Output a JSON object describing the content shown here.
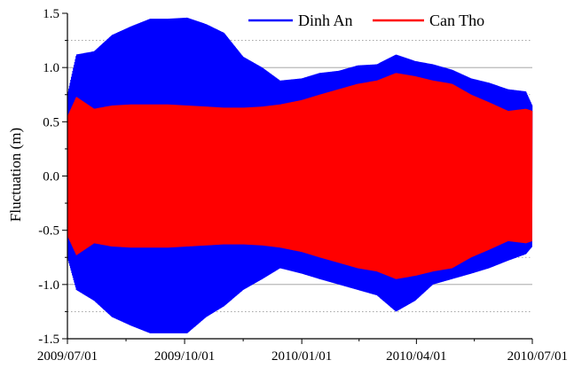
{
  "chart_data": {
    "type": "line",
    "title": "",
    "xlabel": "",
    "ylabel": "Fluctuation (m)",
    "ylim": [
      -1.5,
      1.5
    ],
    "xlim": [
      "2009/07/01",
      "2010/07/01"
    ],
    "x_ticks": [
      "2009/07/01",
      "2009/10/01",
      "2010/01/01",
      "2010/04/01",
      "2010/07/01"
    ],
    "y_ticks": [
      "-1.5",
      "-1.0",
      "-0.5",
      "0.0",
      "0.5",
      "1.0",
      "1.5"
    ],
    "grid": {
      "y_major": true,
      "y_minor_dotted": true,
      "x": false
    },
    "legend": {
      "placement": "top-right",
      "orientation": "horizontal"
    },
    "series": [
      {
        "name": "Dinh An",
        "color": "#0000ff",
        "envelope_dates": [
          "2009/07/01",
          "2009/07/08",
          "2009/07/22",
          "2009/08/05",
          "2009/08/20",
          "2009/09/04",
          "2009/09/18",
          "2009/10/03",
          "2009/10/18",
          "2009/11/01",
          "2009/11/16",
          "2009/12/01",
          "2009/12/15",
          "2010/01/01",
          "2010/01/15",
          "2010/01/30",
          "2010/02/14",
          "2010/03/01",
          "2010/03/16",
          "2010/03/31",
          "2010/04/14",
          "2010/04/29",
          "2010/05/14",
          "2010/05/28",
          "2010/06/12",
          "2010/06/26",
          "2010/07/01"
        ],
        "upper": [
          0.75,
          1.12,
          1.15,
          1.3,
          1.38,
          1.45,
          1.45,
          1.46,
          1.4,
          1.32,
          1.1,
          1.0,
          0.88,
          0.9,
          0.95,
          0.97,
          1.02,
          1.03,
          1.12,
          1.06,
          1.03,
          0.98,
          0.9,
          0.86,
          0.8,
          0.78,
          0.65
        ],
        "lower": [
          -0.75,
          -1.05,
          -1.15,
          -1.3,
          -1.38,
          -1.45,
          -1.45,
          -1.45,
          -1.3,
          -1.2,
          -1.05,
          -0.95,
          -0.85,
          -0.9,
          -0.95,
          -1.0,
          -1.05,
          -1.1,
          -1.25,
          -1.15,
          -1.0,
          -0.95,
          -0.9,
          -0.85,
          -0.78,
          -0.72,
          -0.65
        ]
      },
      {
        "name": "Can Tho",
        "color": "#ff0000",
        "envelope_dates": [
          "2009/07/01",
          "2009/07/08",
          "2009/07/22",
          "2009/08/05",
          "2009/08/20",
          "2009/09/04",
          "2009/09/18",
          "2009/10/03",
          "2009/10/18",
          "2009/11/01",
          "2009/11/16",
          "2009/12/01",
          "2009/12/15",
          "2010/01/01",
          "2010/01/15",
          "2010/01/30",
          "2010/02/14",
          "2010/03/01",
          "2010/03/16",
          "2010/03/31",
          "2010/04/14",
          "2010/04/29",
          "2010/05/14",
          "2010/05/28",
          "2010/06/12",
          "2010/06/26",
          "2010/07/01"
        ],
        "upper": [
          0.55,
          0.73,
          0.62,
          0.65,
          0.66,
          0.66,
          0.66,
          0.65,
          0.64,
          0.63,
          0.63,
          0.64,
          0.66,
          0.7,
          0.75,
          0.8,
          0.85,
          0.88,
          0.95,
          0.92,
          0.88,
          0.85,
          0.75,
          0.68,
          0.6,
          0.62,
          0.6
        ],
        "lower": [
          -0.55,
          -0.73,
          -0.62,
          -0.65,
          -0.66,
          -0.66,
          -0.66,
          -0.65,
          -0.64,
          -0.63,
          -0.63,
          -0.64,
          -0.66,
          -0.7,
          -0.75,
          -0.8,
          -0.85,
          -0.88,
          -0.95,
          -0.92,
          -0.88,
          -0.85,
          -0.75,
          -0.68,
          -0.6,
          -0.62,
          -0.6
        ]
      }
    ]
  }
}
